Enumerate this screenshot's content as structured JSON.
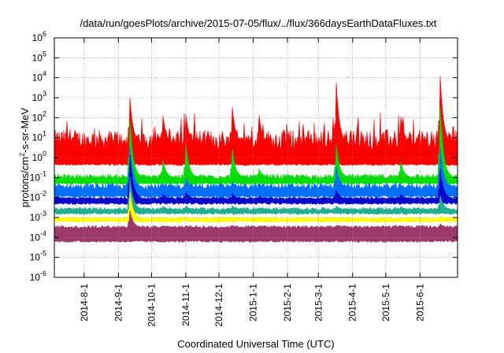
{
  "chart_data": {
    "type": "line",
    "title": "/data/run/goesPlots/archive/2015-07-05/flux/../flux/366daysEarthDataFluxes.txt",
    "xlabel": "Coordinated Universal Time (UTC)",
    "ylabel_parts": [
      "protons/cm",
      "2",
      "-s-sr-MeV"
    ],
    "yscale": "log",
    "ylim_exp": [
      -6,
      6
    ],
    "xlim": [
      "2014-07-05",
      "2015-07-05"
    ],
    "grid": true,
    "x_ticks": [
      {
        "date": "2014-08-01",
        "label": "2014-8-1"
      },
      {
        "date": "2014-09-01",
        "label": "2014-9-1"
      },
      {
        "date": "2014-10-01",
        "label": "2014-10-1"
      },
      {
        "date": "2014-11-01",
        "label": "2014-11-1"
      },
      {
        "date": "2014-12-01",
        "label": "2014-12-1"
      },
      {
        "date": "2015-01-01",
        "label": "2015-1-1"
      },
      {
        "date": "2015-02-01",
        "label": "2015-2-1"
      },
      {
        "date": "2015-03-01",
        "label": "2015-3-1"
      },
      {
        "date": "2015-04-01",
        "label": "2015-4-1"
      },
      {
        "date": "2015-05-01",
        "label": "2015-5-1"
      },
      {
        "date": "2015-06-01",
        "label": "2015-6-1"
      }
    ],
    "y_ticks": [
      {
        "exp": -6,
        "label_base": "10",
        "label_exp": "-6"
      },
      {
        "exp": -5,
        "label_base": "10",
        "label_exp": "-5"
      },
      {
        "exp": -4,
        "label_base": "10",
        "label_exp": "-4"
      },
      {
        "exp": -3,
        "label_base": "10",
        "label_exp": "-3"
      },
      {
        "exp": -2,
        "label_base": "10",
        "label_exp": "-2"
      },
      {
        "exp": -1,
        "label_base": "10",
        "label_exp": "-1"
      },
      {
        "exp": 0,
        "label_base": "10",
        "label_exp": "0"
      },
      {
        "exp": 1,
        "label_base": "10",
        "label_exp": "1"
      },
      {
        "exp": 2,
        "label_base": "10",
        "label_exp": "2"
      },
      {
        "exp": 3,
        "label_base": "10",
        "label_exp": "3"
      },
      {
        "exp": 4,
        "label_base": "10",
        "label_exp": "4"
      },
      {
        "exp": 5,
        "label_base": "10",
        "label_exp": "5"
      },
      {
        "exp": 6,
        "label_base": "10",
        "label_exp": "6"
      }
    ],
    "series": [
      {
        "color": "#ff0000",
        "baseline_log10": 0.7,
        "spread_log10": 1.0,
        "lower_log10": -0.35
      },
      {
        "color": "#00e000",
        "baseline_log10": -1.0,
        "spread_log10": 0.25,
        "lower_log10": -1.3
      },
      {
        "color": "#0070ff",
        "baseline_log10": -1.5,
        "spread_log10": 0.3,
        "lower_log10": -1.95
      },
      {
        "color": "#0000cc",
        "baseline_log10": -2.05,
        "spread_log10": 0.12,
        "lower_log10": -2.3
      },
      {
        "color": "#20b090",
        "baseline_log10": -2.6,
        "spread_log10": 0.15,
        "lower_log10": -2.8
      },
      {
        "color": "#ffff00",
        "baseline_log10": -3.05,
        "spread_log10": 0.1,
        "lower_log10": -3.2
      },
      {
        "color": "#9e3a6a",
        "baseline_log10": -3.5,
        "spread_log10": 0.15,
        "lower_log10": -4.2
      }
    ],
    "events": [
      {
        "date": "2014-09-11",
        "peak_log10": [
          3.4,
          2.4,
          1.0,
          0.5,
          -0.7,
          -1.5,
          -2.5
        ]
      },
      {
        "date": "2014-10-11",
        "peak_log10": [
          2.3,
          0.0,
          -1.4,
          -1.8,
          -2.4,
          -3.0,
          -3.4
        ]
      },
      {
        "date": "2014-11-01",
        "peak_log10": [
          2.2,
          0.7,
          -1.0,
          -1.7,
          -2.4,
          -3.0,
          -3.4
        ]
      },
      {
        "date": "2014-12-13",
        "peak_log10": [
          2.6,
          0.5,
          -1.2,
          -1.8,
          -2.4,
          -3.0,
          -3.4
        ]
      },
      {
        "date": "2015-01-06",
        "peak_log10": [
          2.3,
          -0.5,
          -1.3,
          -1.9,
          -2.5,
          -3.0,
          -3.4
        ]
      },
      {
        "date": "2015-03-17",
        "peak_log10": [
          4.0,
          0.8,
          -0.3,
          -1.6,
          -2.4,
          -3.0,
          -3.4
        ]
      },
      {
        "date": "2015-05-14",
        "peak_log10": [
          2.4,
          0.0,
          -1.5,
          -1.8,
          -2.4,
          -3.0,
          -3.4
        ]
      },
      {
        "date": "2015-06-19",
        "peak_log10": [
          4.5,
          3.0,
          0.8,
          -0.4,
          -1.8,
          -2.9,
          -3.3
        ]
      }
    ]
  }
}
